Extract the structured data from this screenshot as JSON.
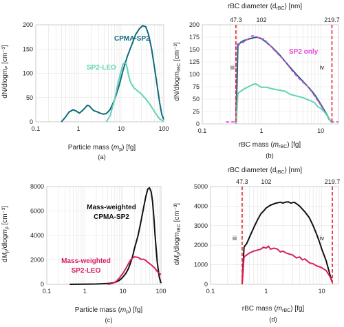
{
  "chart_data": [
    {
      "panel_label": "(a)",
      "type": "line",
      "xscale": "log",
      "xlim": [
        0.1,
        100
      ],
      "ylim": [
        0,
        200
      ],
      "xticks": [
        "0.1",
        "1",
        "10",
        "100"
      ],
      "yticks": [
        "0",
        "50",
        "100",
        "150",
        "200"
      ],
      "xlabel": "Particle mass (mₚ) [fg]",
      "ylabel": "dN/dlogmₚ [cm⁻³]",
      "series": [
        {
          "name": "CPMA-SP2",
          "color": "#0e6a7a",
          "x": [
            0.4,
            0.5,
            0.6,
            0.75,
            0.9,
            1.05,
            1.2,
            1.4,
            1.6,
            1.8,
            2.0,
            2.3,
            2.7,
            3.2,
            3.8,
            4.5,
            5.5,
            7,
            9,
            11,
            14,
            18,
            22,
            27,
            32,
            38,
            44,
            52,
            60,
            70,
            80,
            90,
            100
          ],
          "y": [
            0,
            10,
            20,
            25,
            22,
            18,
            22,
            28,
            34,
            33,
            28,
            23,
            21,
            18,
            16,
            17,
            25,
            45,
            75,
            105,
            135,
            160,
            180,
            192,
            198,
            196,
            180,
            150,
            115,
            75,
            40,
            15,
            5
          ]
        },
        {
          "name": "SP2-LEO",
          "color": "#5fd3b5",
          "x": [
            4.5,
            5.5,
            7,
            8.5,
            10,
            11,
            12,
            13,
            14,
            15,
            17,
            20,
            25,
            30,
            40,
            50,
            60,
            70,
            80,
            100
          ],
          "y": [
            0,
            12,
            45,
            80,
            105,
            118,
            122,
            120,
            110,
            95,
            80,
            70,
            63,
            57,
            45,
            33,
            22,
            13,
            6,
            1
          ]
        }
      ],
      "annotations": [
        "CPMA-SP2",
        "SP2-LEO"
      ]
    },
    {
      "panel_label": "(b)",
      "type": "line",
      "xscale": "log",
      "xlim": [
        0.1,
        20
      ],
      "ylim": [
        0,
        200
      ],
      "xticks": [
        "0.1",
        "1",
        "10"
      ],
      "yticks": [
        "0",
        "25",
        "50",
        "75",
        "100",
        "125",
        "150",
        "175",
        "200"
      ],
      "xlabel": "rBC mass (m_rBC) [fg]",
      "ylabel": "dN/dlogm_rBC [cm⁻³]",
      "top_axis_label": "rBC diameter (d_rBC) [nm]",
      "top_ticks": [
        {
          "label": "47.3",
          "mass": 0.37
        },
        {
          "label": "102",
          "mass": 1.0
        },
        {
          "label": "219.7",
          "mass": 15.5
        }
      ],
      "vlines": [
        {
          "x": 0.37,
          "label": "iii"
        },
        {
          "x": 15.5,
          "label": "iv"
        }
      ],
      "series": [
        {
          "name": "CPMA-SP2",
          "color": "#0e6a7a",
          "x": [
            0.37,
            0.4,
            0.45,
            0.5,
            0.6,
            0.7,
            0.8,
            0.9,
            1.0,
            1.2,
            1.5,
            2.0,
            2.5,
            3,
            4,
            5,
            6,
            7,
            8,
            10,
            12,
            14,
            15.5
          ],
          "y": [
            0,
            158,
            165,
            168,
            171,
            173,
            175,
            174,
            172,
            165,
            155,
            140,
            126,
            115,
            98,
            86,
            76,
            67,
            58,
            40,
            24,
            10,
            2
          ]
        },
        {
          "name": "SP2 only",
          "color": "#e64bd8",
          "dashed": true,
          "x": [
            0.25,
            0.37,
            0.37,
            0.5,
            0.6,
            0.7,
            0.8,
            1.0,
            1.1,
            1.3,
            1.6,
            2.0,
            2.5,
            3,
            4,
            5,
            6,
            7,
            8,
            10,
            12,
            14,
            15.5,
            20
          ],
          "y": [
            4,
            4,
            160,
            165,
            172,
            178,
            177,
            171,
            172,
            162,
            150,
            138,
            127,
            113,
            95,
            84,
            76,
            65,
            55,
            38,
            22,
            8,
            4,
            4
          ]
        },
        {
          "name": "SP2-LEO",
          "color": "#5fd3b5",
          "x": [
            0.37,
            0.4,
            0.5,
            0.6,
            0.7,
            0.8,
            0.9,
            1.0,
            1.2,
            1.5,
            2,
            2.5,
            3,
            4,
            5,
            6,
            7,
            8,
            9,
            10,
            12,
            14,
            15.5
          ],
          "y": [
            0,
            62,
            70,
            75,
            79,
            81,
            77,
            74,
            74,
            71,
            68,
            66,
            60,
            56,
            53,
            49,
            46,
            42,
            34,
            32,
            22,
            10,
            2
          ]
        }
      ],
      "annotations": [
        "SP2 only",
        "iii",
        "iv"
      ]
    },
    {
      "panel_label": "(c)",
      "type": "line",
      "xscale": "log",
      "xlim": [
        0.1,
        100
      ],
      "ylim": [
        0,
        8000
      ],
      "xticks": [
        "0.1",
        "1",
        "10",
        "100"
      ],
      "yticks": [
        "0",
        "2000",
        "4000",
        "6000",
        "8000"
      ],
      "xlabel": "Particle mass (mₚ) [fg]",
      "ylabel": "dMₚ/dlogmₚ [cm⁻³]",
      "series": [
        {
          "name": "Mass-weighted CPMA-SP2",
          "color": "#111111",
          "x": [
            0.4,
            1,
            2,
            3,
            4,
            5,
            6,
            7,
            8,
            9,
            10,
            12,
            14,
            16,
            18,
            20,
            25,
            30,
            35,
            40,
            45,
            50,
            55,
            60,
            65,
            70,
            75,
            80,
            90,
            100
          ],
          "y": [
            0,
            10,
            30,
            50,
            70,
            100,
            150,
            220,
            320,
            450,
            600,
            900,
            1300,
            1800,
            2300,
            2900,
            4000,
            5200,
            6300,
            7200,
            7800,
            7900,
            7600,
            6800,
            5500,
            4000,
            2800,
            1800,
            600,
            100
          ]
        },
        {
          "name": "Mass-weighted SP2-LEO",
          "color": "#d81d63",
          "x": [
            4,
            5,
            6,
            7,
            8,
            10,
            12,
            14,
            16,
            18,
            20,
            25,
            30,
            35,
            40,
            45,
            50,
            60,
            70,
            80,
            90,
            100
          ],
          "y": [
            0,
            50,
            150,
            300,
            500,
            900,
            1300,
            1700,
            2000,
            2150,
            2250,
            2200,
            2050,
            2050,
            1950,
            1800,
            1700,
            1500,
            1300,
            1050,
            900,
            800
          ]
        }
      ],
      "annotations": [
        "Mass-weighted",
        "CPMA-SP2",
        "Mass-weighted",
        "SP2-LEO"
      ]
    },
    {
      "panel_label": "(d)",
      "type": "line",
      "xscale": "log",
      "xlim": [
        0.1,
        20
      ],
      "ylim": [
        0,
        5000
      ],
      "xticks": [
        "0.1",
        "1",
        "10"
      ],
      "yticks": [
        "0",
        "1000",
        "2000",
        "3000",
        "4000",
        "5000"
      ],
      "xlabel": "rBC mass (m_rBC) [fg]",
      "ylabel": "dMₚ/dlogm_rBC [cm⁻³]",
      "top_axis_label": "rBC diameter (d_rBC) [nm]",
      "top_ticks": [
        {
          "label": "47.3",
          "mass": 0.37
        },
        {
          "label": "102",
          "mass": 1.0
        },
        {
          "label": "219.7",
          "mass": 15.5
        }
      ],
      "vlines": [
        {
          "x": 0.37,
          "label": "iii"
        },
        {
          "x": 15.5,
          "label": "iv"
        }
      ],
      "series": [
        {
          "name": "CPMA-SP2",
          "color": "#111111",
          "x": [
            0.37,
            0.4,
            0.45,
            0.5,
            0.6,
            0.7,
            0.8,
            0.9,
            1.0,
            1.2,
            1.5,
            1.8,
            2.0,
            2.2,
            2.5,
            2.8,
            3.2,
            3.6,
            4,
            5,
            6,
            7,
            8,
            9,
            10,
            12,
            14,
            15.5
          ],
          "y": [
            0,
            1900,
            2100,
            2400,
            2900,
            3300,
            3600,
            3750,
            3900,
            4050,
            4150,
            4200,
            4150,
            4200,
            4220,
            4150,
            4200,
            4100,
            4000,
            3700,
            3400,
            3000,
            2600,
            2200,
            1800,
            1200,
            500,
            100
          ]
        },
        {
          "name": "SP2-LEO",
          "color": "#d81d63",
          "x": [
            0.37,
            0.4,
            0.5,
            0.6,
            0.7,
            0.8,
            0.9,
            1.0,
            1.1,
            1.2,
            1.4,
            1.6,
            1.8,
            2.0,
            2.3,
            2.6,
            3,
            3.5,
            4,
            4.5,
            5,
            6,
            7,
            8,
            9,
            10,
            12,
            14,
            15.5
          ],
          "y": [
            0,
            1400,
            1600,
            1700,
            1750,
            1800,
            1900,
            1850,
            1950,
            1800,
            1850,
            1800,
            1650,
            1700,
            1600,
            1550,
            1500,
            1350,
            1400,
            1250,
            1300,
            1100,
            1050,
            950,
            900,
            850,
            700,
            400,
            100
          ]
        }
      ],
      "annotations": [
        "iii",
        "iv"
      ]
    }
  ]
}
